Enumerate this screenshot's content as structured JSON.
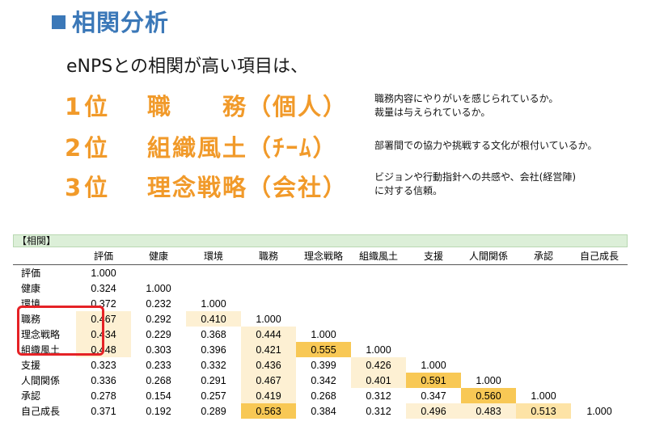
{
  "heading": {
    "title": "相関分析"
  },
  "lead": "eNPSとの相関が高い項目は、",
  "rankings": [
    {
      "rank": "1位",
      "item": "職　　務（個人）",
      "description": "職務内容にやりがいを感じられているか。\n裁量は与えられているか。"
    },
    {
      "rank": "2位",
      "item": "組織風土（ﾁｰﾑ）",
      "description": "部署間での協力や挑戦する文化が根付いているか。"
    },
    {
      "rank": "3位",
      "item": "理念戦略（会社）",
      "description": "ビジョンや行動指針への共感や、会社(経営陣)\nに対する信頼。"
    }
  ],
  "table": {
    "caption": "【相関】",
    "columns": [
      "",
      "評価",
      "健康",
      "環境",
      "職務",
      "理念戦略",
      "組織風土",
      "支援",
      "人間関係",
      "承認",
      "自己成長"
    ],
    "rows": [
      {
        "label": "評価",
        "values": [
          "1.000",
          "",
          "",
          "",
          "",
          "",
          "",
          "",
          "",
          ""
        ]
      },
      {
        "label": "健康",
        "values": [
          "0.324",
          "1.000",
          "",
          "",
          "",
          "",
          "",
          "",
          "",
          ""
        ]
      },
      {
        "label": "環境",
        "values": [
          "0.372",
          "0.232",
          "1.000",
          "",
          "",
          "",
          "",
          "",
          "",
          ""
        ]
      },
      {
        "label": "職務",
        "values": [
          "0.467",
          "0.292",
          "0.410",
          "1.000",
          "",
          "",
          "",
          "",
          "",
          ""
        ]
      },
      {
        "label": "理念戦略",
        "values": [
          "0.434",
          "0.229",
          "0.368",
          "0.444",
          "1.000",
          "",
          "",
          "",
          "",
          ""
        ]
      },
      {
        "label": "組織風土",
        "values": [
          "0.448",
          "0.303",
          "0.396",
          "0.421",
          "0.555",
          "1.000",
          "",
          "",
          "",
          ""
        ]
      },
      {
        "label": "支援",
        "values": [
          "0.323",
          "0.233",
          "0.332",
          "0.436",
          "0.399",
          "0.426",
          "1.000",
          "",
          "",
          ""
        ]
      },
      {
        "label": "人間関係",
        "values": [
          "0.336",
          "0.268",
          "0.291",
          "0.467",
          "0.342",
          "0.401",
          "0.591",
          "1.000",
          "",
          ""
        ]
      },
      {
        "label": "承認",
        "values": [
          "0.278",
          "0.154",
          "0.257",
          "0.419",
          "0.268",
          "0.312",
          "0.347",
          "0.560",
          "1.000",
          ""
        ]
      },
      {
        "label": "自己成長",
        "values": [
          "0.371",
          "0.192",
          "0.289",
          "0.563",
          "0.384",
          "0.312",
          "0.496",
          "0.483",
          "0.513",
          "1.000"
        ]
      }
    ]
  },
  "colors": {
    "title": "#3b78b8",
    "ranking": "#f19a2a",
    "highlight_border": "#e52226",
    "table_caption_bg": "#dcefd8"
  }
}
